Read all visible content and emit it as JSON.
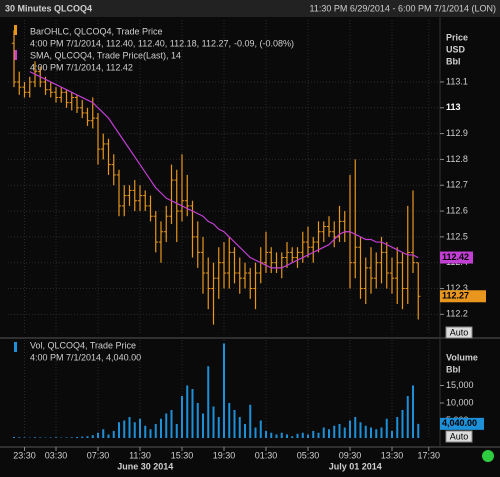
{
  "header": {
    "title": "30 Minutes QLCOQ4",
    "range": "11:30 PM 6/29/2014 - 6:00 PM 7/1/2014 (LON)"
  },
  "xticks": [
    {
      "value": 2,
      "label": "23:30"
    },
    {
      "value": 8,
      "label": "03:30"
    },
    {
      "value": 16,
      "label": "07:30"
    },
    {
      "value": 24,
      "label": "11:30"
    },
    {
      "value": 32,
      "label": "15:30"
    },
    {
      "value": 40,
      "label": "19:30"
    },
    {
      "value": 48,
      "label": "01:30"
    },
    {
      "value": 56,
      "label": "05:30"
    },
    {
      "value": 64,
      "label": "09:30"
    },
    {
      "value": 72,
      "label": "13:30"
    },
    {
      "value": 79,
      "label": "17:30"
    }
  ],
  "date_labels": [
    {
      "value": 25,
      "label": "June 30 2014"
    },
    {
      "value": 65,
      "label": "July 01 2014"
    }
  ],
  "chart_data": [
    {
      "type": "ohlc",
      "y_label": [
        "Price",
        "USD",
        "Bbl"
      ],
      "auto_button": "Auto",
      "ylim": [
        112.12,
        113.34
      ],
      "yticks": [
        113.1,
        113,
        112.9,
        112.8,
        112.7,
        112.6,
        112.5,
        112.4,
        112.3,
        112.2
      ],
      "grid": true,
      "series": [
        {
          "name": "BarOHLC, QLCOQ4, Trade Price",
          "detail": "4:00 PM 7/1/2014, 112.40, 112.40, 112.18, 112.27,",
          "change": "-0.09, (-0.08%)",
          "color": "#e8961e",
          "last": 112.27,
          "open": [
            113.25,
            113.1,
            113.08,
            113.06,
            113.1,
            113.14,
            113.1,
            113.07,
            113.06,
            113.04,
            113.06,
            113.02,
            113.04,
            113.0,
            112.98,
            112.95,
            112.96,
            112.84,
            112.86,
            112.78,
            112.74,
            112.62,
            112.66,
            112.68,
            112.64,
            112.66,
            112.62,
            112.58,
            112.48,
            112.52,
            112.58,
            112.72,
            112.6,
            112.64,
            112.62,
            112.5,
            112.44,
            112.36,
            112.3,
            112.34,
            112.4,
            112.36,
            112.44,
            112.36,
            112.34,
            112.36,
            112.3,
            112.36,
            112.4,
            112.44,
            112.4,
            112.38,
            112.42,
            112.44,
            112.42,
            112.44,
            112.48,
            112.46,
            112.48,
            112.52,
            112.54,
            112.52,
            112.5,
            112.56,
            112.52,
            112.4,
            112.46,
            112.3,
            112.38,
            112.34,
            112.4,
            112.44,
            112.36,
            112.34,
            112.4,
            112.3,
            112.44,
            112.4
          ],
          "high": [
            113.3,
            113.14,
            113.1,
            113.12,
            113.18,
            113.16,
            113.12,
            113.1,
            113.08,
            113.08,
            113.07,
            113.06,
            113.05,
            113.03,
            113.0,
            113.04,
            112.98,
            112.9,
            112.88,
            112.82,
            112.76,
            112.7,
            112.7,
            112.72,
            112.7,
            112.68,
            112.66,
            112.6,
            112.56,
            112.62,
            112.78,
            112.76,
            112.82,
            112.74,
            112.64,
            112.56,
            112.5,
            112.42,
            112.4,
            112.46,
            112.48,
            112.5,
            112.46,
            112.42,
            112.4,
            112.38,
            112.4,
            112.46,
            112.52,
            112.46,
            112.44,
            112.44,
            112.48,
            112.46,
            112.46,
            112.52,
            112.54,
            112.5,
            112.56,
            112.56,
            112.58,
            112.56,
            112.62,
            112.6,
            112.74,
            112.8,
            112.5,
            112.42,
            112.46,
            112.44,
            112.5,
            112.48,
            112.42,
            112.46,
            112.44,
            112.62,
            112.68,
            112.4
          ],
          "low": [
            113.08,
            113.05,
            113.04,
            113.04,
            113.08,
            113.08,
            113.05,
            113.04,
            113.02,
            113.02,
            113.0,
            112.99,
            112.98,
            112.96,
            112.93,
            112.92,
            112.78,
            112.8,
            112.74,
            112.7,
            112.58,
            112.58,
            112.62,
            112.6,
            112.6,
            112.6,
            112.56,
            112.44,
            112.4,
            112.48,
            112.55,
            112.48,
            112.56,
            112.58,
            112.42,
            112.38,
            112.28,
            112.22,
            112.16,
            112.26,
            112.3,
            112.3,
            112.32,
            112.28,
            112.3,
            112.26,
            112.22,
            112.32,
            112.36,
            112.36,
            112.36,
            112.34,
            112.38,
            112.4,
            112.38,
            112.4,
            112.42,
            112.4,
            112.44,
            112.48,
            112.5,
            112.46,
            112.48,
            112.48,
            112.3,
            112.34,
            112.26,
            112.24,
            112.28,
            112.3,
            112.32,
            112.3,
            112.28,
            112.24,
            112.22,
            112.24,
            112.36,
            112.18
          ],
          "close": [
            113.1,
            113.08,
            113.06,
            113.1,
            113.14,
            113.1,
            113.07,
            113.06,
            113.04,
            113.06,
            113.02,
            113.04,
            113.0,
            112.98,
            112.95,
            112.96,
            112.84,
            112.86,
            112.78,
            112.74,
            112.62,
            112.66,
            112.68,
            112.64,
            112.66,
            112.62,
            112.58,
            112.48,
            112.52,
            112.58,
            112.72,
            112.6,
            112.64,
            112.62,
            112.5,
            112.44,
            112.36,
            112.3,
            112.34,
            112.4,
            112.36,
            112.44,
            112.36,
            112.34,
            112.36,
            112.3,
            112.36,
            112.4,
            112.44,
            112.4,
            112.38,
            112.42,
            112.44,
            112.42,
            112.44,
            112.48,
            112.46,
            112.48,
            112.52,
            112.54,
            112.52,
            112.5,
            112.56,
            112.52,
            112.4,
            112.46,
            112.3,
            112.38,
            112.34,
            112.4,
            112.44,
            112.36,
            112.34,
            112.4,
            112.3,
            112.44,
            112.4,
            112.27
          ]
        },
        {
          "name": "SMA, QLCOQ4, Trade Price(Last), 14",
          "detail": "4:00 PM 7/1/2014, 112.42",
          "color": "#c23fd4",
          "last": 112.42,
          "values": [
            null,
            null,
            null,
            113.14,
            113.13,
            113.12,
            113.11,
            113.1,
            113.09,
            113.08,
            113.07,
            113.06,
            113.05,
            113.04,
            113.03,
            113.02,
            113.0,
            112.98,
            112.96,
            112.93,
            112.9,
            112.87,
            112.84,
            112.81,
            112.78,
            112.75,
            112.72,
            112.69,
            112.67,
            112.65,
            112.64,
            112.63,
            112.62,
            112.61,
            112.6,
            112.59,
            112.58,
            112.56,
            112.55,
            112.53,
            112.52,
            112.5,
            112.48,
            112.46,
            112.44,
            112.42,
            112.41,
            112.4,
            112.39,
            112.38,
            112.38,
            112.38,
            112.39,
            112.4,
            112.41,
            112.42,
            112.43,
            112.44,
            112.45,
            112.46,
            112.47,
            112.49,
            112.51,
            112.52,
            112.52,
            112.51,
            112.5,
            112.49,
            112.49,
            112.48,
            112.48,
            112.47,
            112.46,
            112.45,
            112.44,
            112.43,
            112.43,
            112.42
          ]
        }
      ]
    },
    {
      "type": "bar",
      "y_label": [
        "Volume",
        "Bbl"
      ],
      "auto_button": "Auto",
      "ylim": [
        0,
        28000
      ],
      "yticks": [
        {
          "value": 5000,
          "label": "5,000"
        },
        {
          "value": 10000,
          "label": "10,000"
        },
        {
          "value": 15000,
          "label": "15,000"
        }
      ],
      "series": [
        {
          "name": "Vol, QLCOQ4, Trade Price",
          "detail": "4:00 PM 7/1/2014, 4,040.00",
          "color": "#1e90d8",
          "last": {
            "value": 4040,
            "label": "4,040.00"
          },
          "values": [
            300,
            200,
            150,
            100,
            200,
            150,
            100,
            150,
            200,
            100,
            150,
            200,
            300,
            400,
            500,
            800,
            1500,
            2500,
            1000,
            2000,
            4500,
            5000,
            6000,
            4500,
            5500,
            3500,
            2500,
            4000,
            5500,
            7000,
            8000,
            4000,
            12000,
            15000,
            14000,
            10000,
            7000,
            20500,
            9000,
            6000,
            27000,
            10000,
            8000,
            6000,
            4000,
            9500,
            3000,
            5000,
            2000,
            1500,
            1000,
            1500,
            1000,
            500,
            1200,
            1500,
            1000,
            2000,
            1500,
            3000,
            2500,
            3500,
            4000,
            3000,
            5000,
            6000,
            4500,
            3500,
            3000,
            2500,
            3000,
            5500,
            2000,
            6000,
            8000,
            12000,
            15000,
            4040
          ]
        }
      ]
    }
  ]
}
